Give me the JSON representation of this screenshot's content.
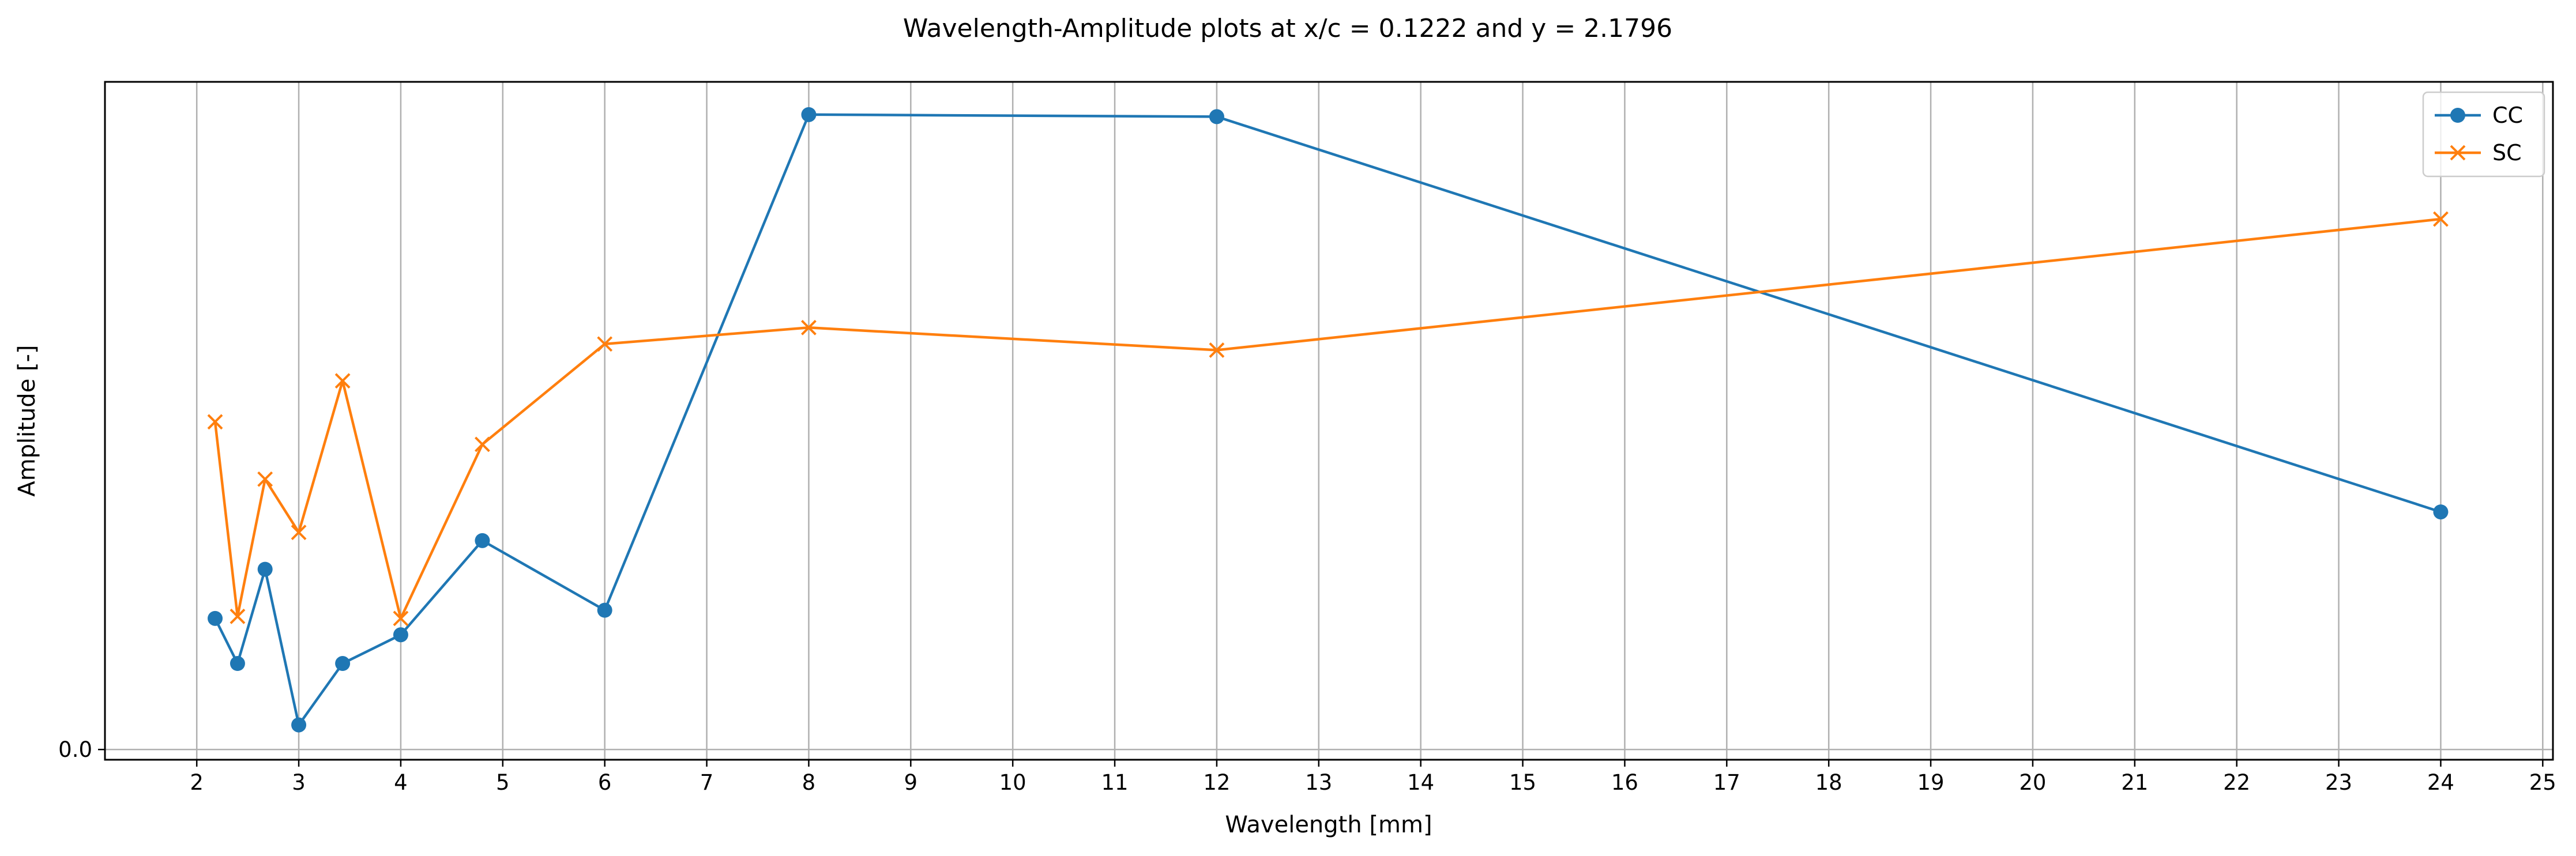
{
  "chart_data": {
    "type": "line",
    "title": "Wavelength-Amplitude plots at x/c = 0.1222 and y = 2.1796",
    "xlabel": "Wavelength [mm]",
    "ylabel": "Amplitude [-]",
    "xlim": [
      1.1,
      25.1
    ],
    "ylim": [
      -0.25,
      16.3
    ],
    "xticks": [
      2,
      3,
      4,
      5,
      6,
      7,
      8,
      9,
      10,
      11,
      12,
      13,
      14,
      15,
      16,
      17,
      18,
      19,
      20,
      21,
      22,
      23,
      24,
      25
    ],
    "yticks": [
      0.0
    ],
    "ytick_labels": [
      "0.0"
    ],
    "grid": "vertical",
    "legend_position": "top-right",
    "series": [
      {
        "name": "CC",
        "color": "#1f77b4",
        "marker": "circle",
        "x": [
          2.18,
          2.4,
          2.67,
          3.0,
          3.43,
          4.0,
          4.8,
          6.0,
          8.0,
          12.0,
          24.0
        ],
        "y": [
          3.2,
          2.1,
          4.4,
          0.6,
          2.1,
          2.8,
          5.1,
          3.4,
          15.5,
          15.45,
          5.8
        ]
      },
      {
        "name": "SC",
        "color": "#ff7f0e",
        "marker": "x",
        "x": [
          2.18,
          2.4,
          2.67,
          3.0,
          3.43,
          4.0,
          4.8,
          6.0,
          8.0,
          12.0,
          24.0
        ],
        "y": [
          8.0,
          3.25,
          6.6,
          5.3,
          9.0,
          3.2,
          7.45,
          9.9,
          10.3,
          9.75,
          12.95
        ]
      }
    ]
  }
}
